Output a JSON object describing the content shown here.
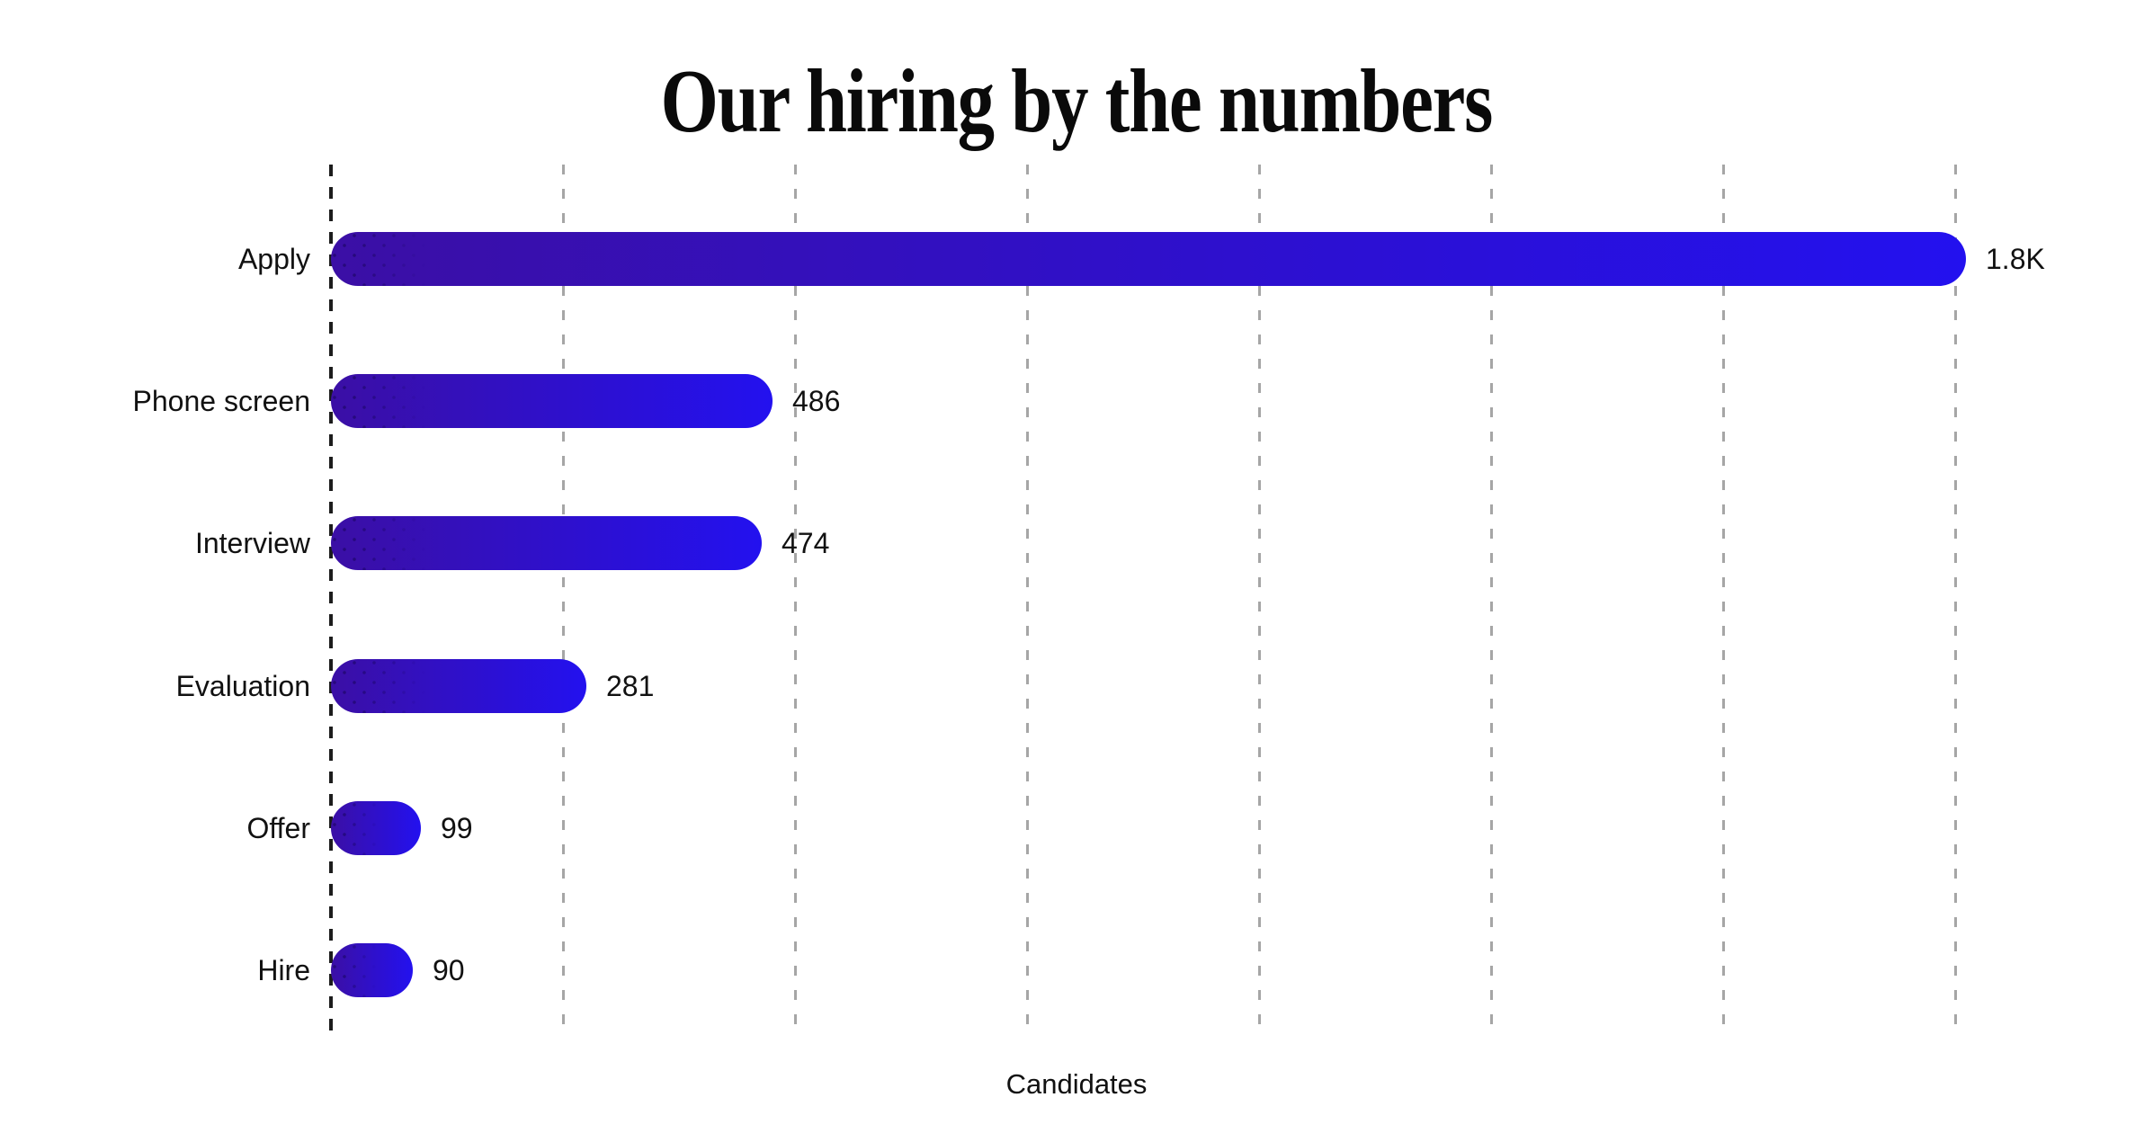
{
  "chart_data": {
    "type": "bar",
    "orientation": "horizontal",
    "title": "Our hiring by the numbers",
    "xlabel": "Candidates",
    "ylabel": "",
    "categories": [
      "Apply",
      "Phone screen",
      "Interview",
      "Evaluation",
      "Offer",
      "Hire"
    ],
    "values": [
      1800,
      486,
      474,
      281,
      99,
      90
    ],
    "value_labels": [
      "1.8K",
      "486",
      "474",
      "281",
      "99",
      "90"
    ],
    "xlim": [
      0,
      1800
    ],
    "grid": "vertical dashed gridlines, 8 lines including zero axis, evenly spaced",
    "legend": "none",
    "colors": {
      "background": "#ffffff",
      "bar_gradient_start": "#3b0fa5",
      "bar_gradient_end": "#2311ef",
      "axis_dash": "#1c1c1c",
      "gridline_dash": "#a6a6a6",
      "text": "#111111",
      "title_text": "#0a0a0a"
    }
  }
}
